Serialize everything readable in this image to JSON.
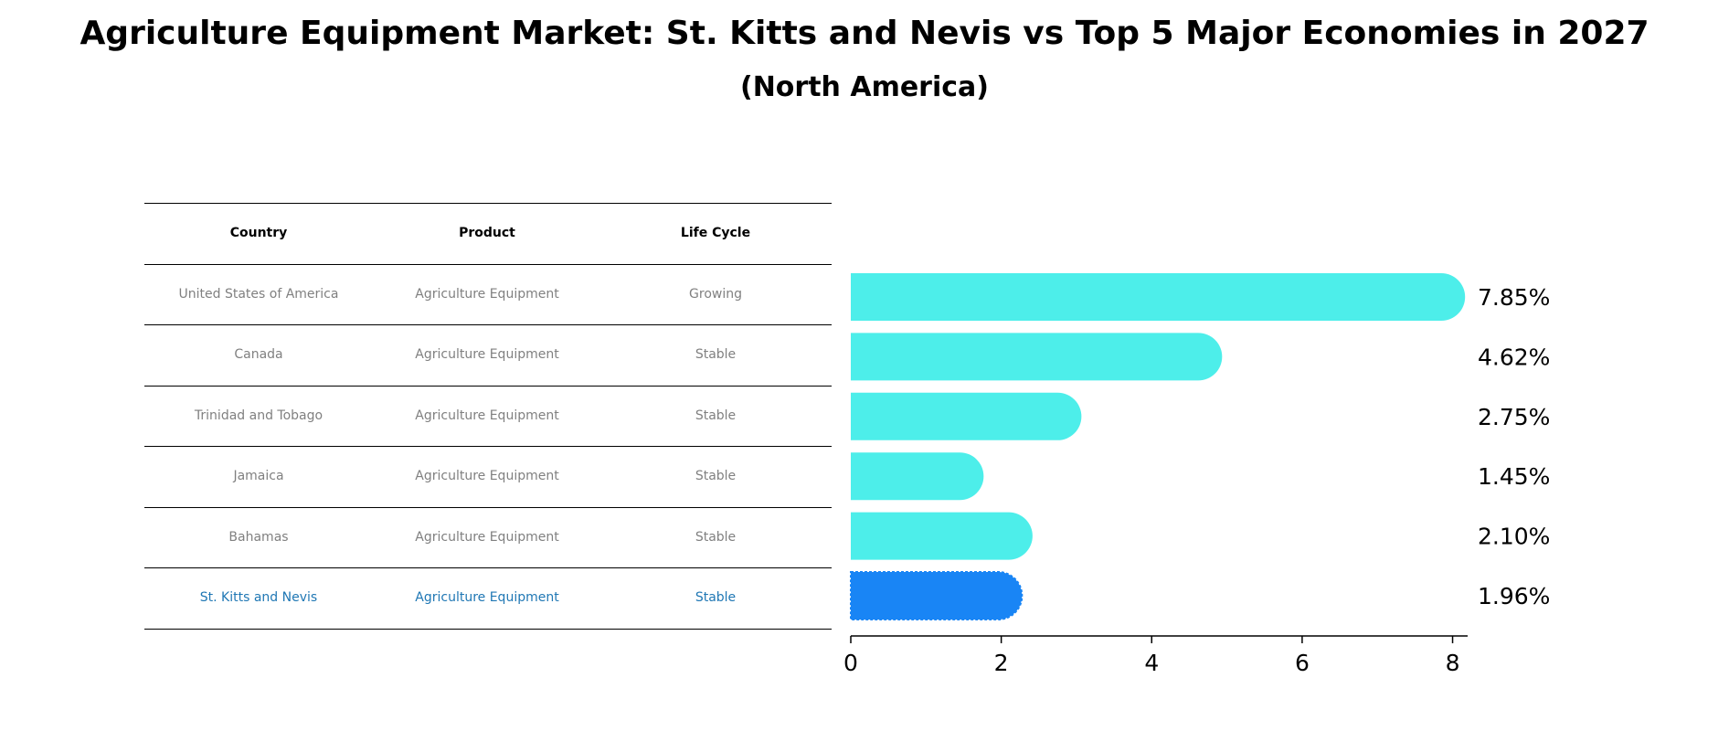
{
  "title": "Agriculture Equipment Market: St. Kitts and Nevis vs Top 5 Major Economies in 2027",
  "subtitle": "(North America)",
  "table": {
    "headers": [
      "Country",
      "Product",
      "Life Cycle"
    ],
    "rows": [
      [
        "United States of America",
        "Agriculture Equipment",
        "Growing"
      ],
      [
        "Canada",
        "Agriculture Equipment",
        "Stable"
      ],
      [
        "Trinidad and Tobago",
        "Agriculture Equipment",
        "Stable"
      ],
      [
        "Jamaica",
        "Agriculture Equipment",
        "Stable"
      ],
      [
        "Bahamas",
        "Agriculture Equipment",
        "Stable"
      ],
      [
        "St. Kitts and Nevis",
        "Agriculture Equipment",
        "Stable"
      ]
    ],
    "highlight_row": 5
  },
  "chart_data": {
    "type": "bar",
    "orientation": "horizontal",
    "categories": [
      "United States of America",
      "Canada",
      "Trinidad and Tobago",
      "Jamaica",
      "Bahamas",
      "St. Kitts and Nevis"
    ],
    "values": [
      7.85,
      4.62,
      2.75,
      1.45,
      2.1,
      1.96
    ],
    "labels": [
      "7.85%",
      "4.62%",
      "2.75%",
      "1.45%",
      "2.10%",
      "1.96%"
    ],
    "xlim": [
      0,
      8.2
    ],
    "xticks": [
      0,
      2,
      4,
      6,
      8
    ],
    "colors": {
      "default": "#4deeea",
      "highlight": "#1985f5"
    },
    "highlight_index": 5
  }
}
